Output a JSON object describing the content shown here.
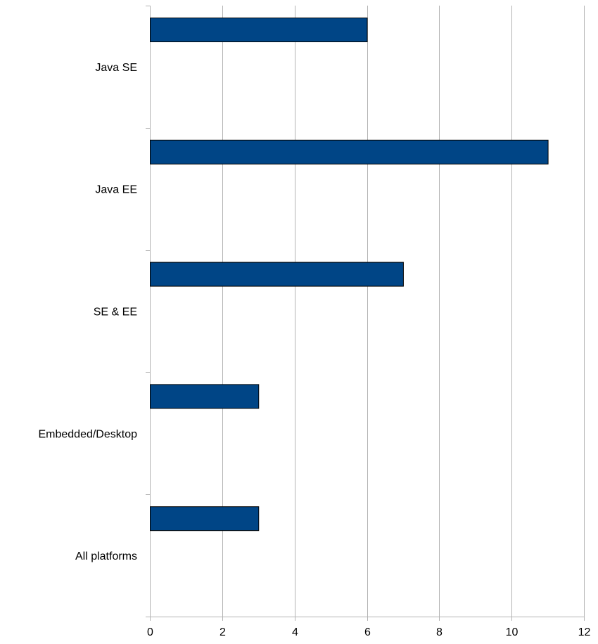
{
  "chart_data": {
    "type": "bar",
    "orientation": "horizontal",
    "title": "",
    "xlabel": "",
    "ylabel": "",
    "categories": [
      "Java SE",
      "Java EE",
      "SE & EE",
      "Embedded/Desktop",
      "All platforms"
    ],
    "values": [
      6,
      11,
      7,
      3,
      3
    ],
    "xlim": [
      0,
      12
    ],
    "x_ticks": [
      0,
      2,
      4,
      6,
      8,
      10,
      12
    ],
    "grid": "vertical",
    "legend": "none",
    "colors": {
      "bar_fill": "#004586",
      "bar_stroke": "#000000",
      "grid": "#b3b3b3",
      "axis": "#b3b3b3"
    }
  }
}
